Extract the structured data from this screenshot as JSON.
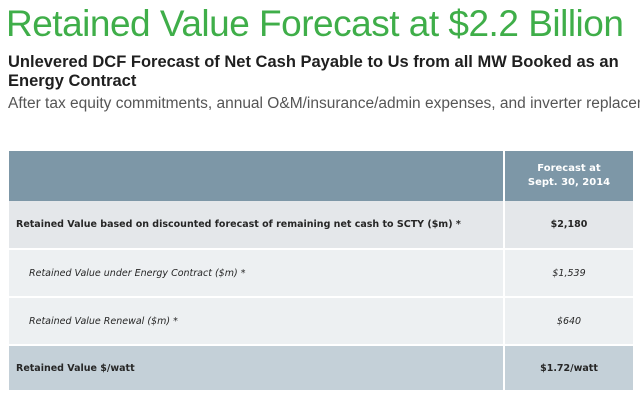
{
  "title": "Retained Value Forecast at $2.2 Billion",
  "subtitle": "Unlevered DCF Forecast of Net Cash Payable to Us from all MW Booked as an Energy Contract",
  "caption": "After tax equity commitments, annual O&M/insurance/admin expenses, and inverter replacement",
  "table": {
    "header": {
      "label": "",
      "value_line1": "Forecast at",
      "value_line2": "Sept. 30, 2014"
    },
    "rows": [
      {
        "label": "Retained Value based on discounted forecast of remaining net cash to SCTY ($m) *",
        "value": "$2,180"
      },
      {
        "label": "Retained Value under Energy Contract ($m) *",
        "value": "$1,539"
      },
      {
        "label": "Retained Value Renewal ($m) *",
        "value": "$640"
      },
      {
        "label": "Retained Value $/watt",
        "value": "$1.72/watt"
      }
    ]
  },
  "colors": {
    "title": "#3fae49",
    "header_bg": "#7d97a7",
    "row_bg": "#e4e7ea",
    "total_row_bg": "#c4d0d8"
  }
}
